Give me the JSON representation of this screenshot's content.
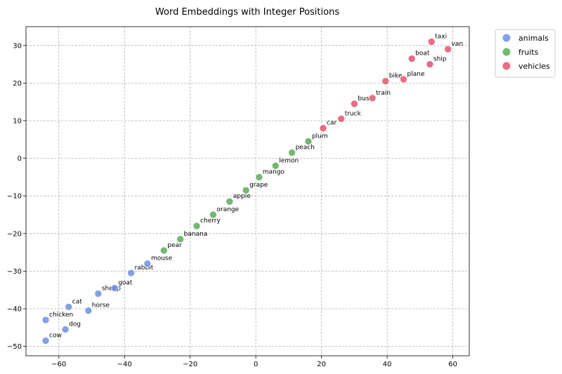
{
  "chart_data": {
    "type": "scatter",
    "title": "Word Embeddings with Integer Positions",
    "xlabel": "",
    "ylabel": "",
    "xlim": [
      -70,
      65
    ],
    "ylim": [
      -52.5,
      35
    ],
    "xticks": [
      -60,
      -40,
      -20,
      0,
      20,
      40,
      60
    ],
    "yticks": [
      -50,
      -40,
      -30,
      -20,
      -10,
      0,
      10,
      20,
      30
    ],
    "xtick_labels": [
      "−60",
      "−40",
      "−20",
      "0",
      "20",
      "40",
      "60"
    ],
    "ytick_labels": [
      "−50",
      "−40",
      "−30",
      "−20",
      "−10",
      "0",
      "10",
      "20",
      "30"
    ],
    "grid": true,
    "legend_position": "outside-top-right",
    "series": [
      {
        "name": "animals",
        "color": "#6f8fe3",
        "points": [
          {
            "label": "cow",
            "x": -64,
            "y": -48.5
          },
          {
            "label": "dog",
            "x": -58,
            "y": -45.5
          },
          {
            "label": "chicken",
            "x": -64,
            "y": -43
          },
          {
            "label": "horse",
            "x": -51,
            "y": -40.5
          },
          {
            "label": "cat",
            "x": -57,
            "y": -39.5
          },
          {
            "label": "sheep",
            "x": -48,
            "y": -36
          },
          {
            "label": "goat",
            "x": -43,
            "y": -34.5
          },
          {
            "label": "rabbit",
            "x": -38,
            "y": -30.5
          },
          {
            "label": "mouse",
            "x": -33,
            "y": -28
          }
        ]
      },
      {
        "name": "fruits",
        "color": "#5aab5a",
        "points": [
          {
            "label": "pear",
            "x": -28,
            "y": -24.5
          },
          {
            "label": "banana",
            "x": -23,
            "y": -21.5
          },
          {
            "label": "cherry",
            "x": -18,
            "y": -18
          },
          {
            "label": "orange",
            "x": -13,
            "y": -15
          },
          {
            "label": "apple",
            "x": -8,
            "y": -11.5
          },
          {
            "label": "grape",
            "x": -3,
            "y": -8.5
          },
          {
            "label": "mango",
            "x": 1,
            "y": -5
          },
          {
            "label": "lemon",
            "x": 6,
            "y": -2
          },
          {
            "label": "peach",
            "x": 11,
            "y": 1.5
          },
          {
            "label": "plum",
            "x": 16,
            "y": 4.5
          }
        ]
      },
      {
        "name": "vehicles",
        "color": "#e8536e",
        "points": [
          {
            "label": "car",
            "x": 20.5,
            "y": 8
          },
          {
            "label": "truck",
            "x": 26,
            "y": 10.5
          },
          {
            "label": "bus",
            "x": 30,
            "y": 14.5
          },
          {
            "label": "train",
            "x": 35.5,
            "y": 16
          },
          {
            "label": "bike",
            "x": 39.5,
            "y": 20.5
          },
          {
            "label": "plane",
            "x": 45,
            "y": 21
          },
          {
            "label": "ship",
            "x": 53,
            "y": 25
          },
          {
            "label": "boat",
            "x": 47.5,
            "y": 26.5
          },
          {
            "label": "van",
            "x": 58.5,
            "y": 29
          },
          {
            "label": "taxi",
            "x": 53.5,
            "y": 31
          }
        ]
      }
    ]
  }
}
